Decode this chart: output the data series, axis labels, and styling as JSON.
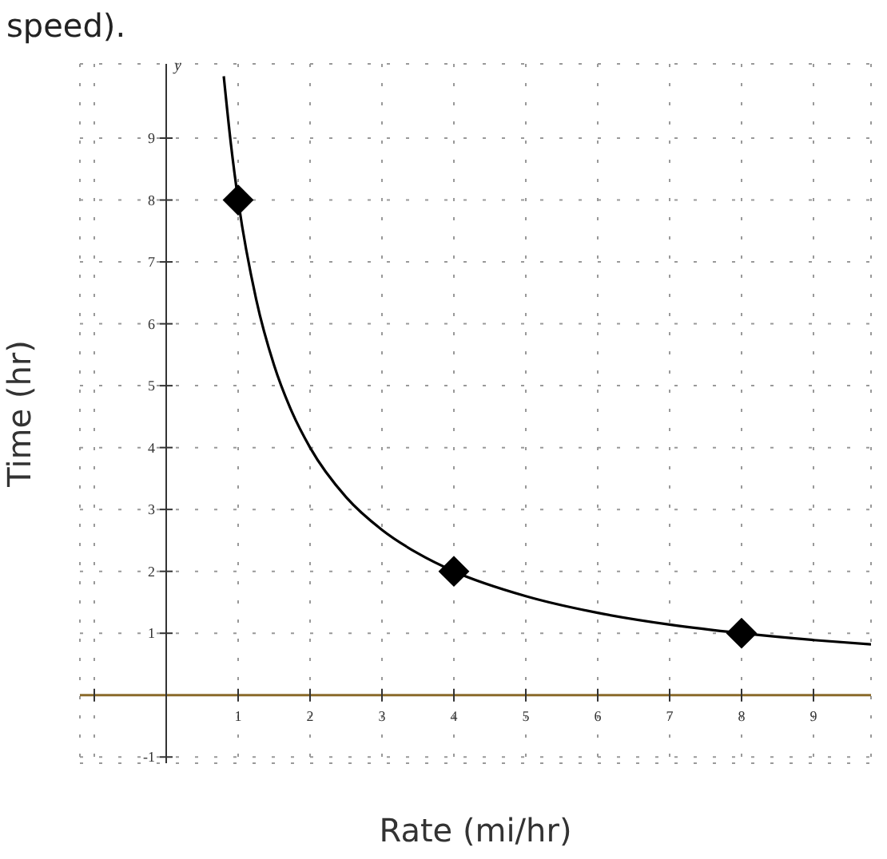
{
  "chart_data": {
    "type": "line",
    "xlabel": "Rate (mi/hr)",
    "ylabel": "Time (hr)",
    "annotations": [
      "speed).",
      "y"
    ],
    "xlim": [
      -1.2,
      9.8
    ],
    "ylim": [
      -1.1,
      10.2
    ],
    "xticks": [
      {
        "value": -1,
        "label": null
      },
      1,
      2,
      3,
      4,
      5,
      6,
      7,
      8,
      9
    ],
    "yticks": [
      -1,
      1,
      2,
      3,
      4,
      5,
      6,
      7,
      8,
      9
    ],
    "grid": true,
    "series": [
      {
        "color": "#000000",
        "marker": "none",
        "x": [
          0.8,
          0.9,
          1,
          1.25,
          1.5,
          1.75,
          2,
          2.5,
          3,
          3.5,
          4,
          5,
          6,
          7,
          8,
          9,
          9.8
        ],
        "values": [
          10,
          8.9,
          8,
          6.4,
          5.33,
          4.57,
          4,
          3.2,
          2.67,
          2.29,
          2,
          1.6,
          1.33,
          1.14,
          1,
          0.89,
          0.82
        ]
      },
      {
        "type": "scatter",
        "color": "#000000",
        "marker": "diamond",
        "x": [
          1,
          4,
          8
        ],
        "values": [
          8,
          2,
          1
        ]
      }
    ]
  }
}
